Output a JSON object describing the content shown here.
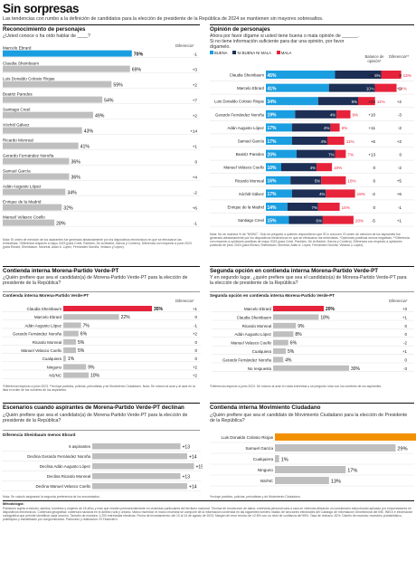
{
  "header": {
    "title": "Sin sorpresas",
    "subtitle": "Las tendencias con rumbo a la definición de candidatos para la elección de presidente de la República de 2024 se mantienen sin mayores sobresaltos."
  },
  "panel1": {
    "title": "Reconocimiento de personajes",
    "question": "¿Usted conoce o ha oído hablar de ____?",
    "diff_header": "Diferencia*",
    "note": "Nota: El orden de mención de los aspirantes fue generado aleatoriamente por los dispositivos electrónicos en que se efectuaron las entrevistas. *Diferencia respecto a mayo 2023 (para Creel, Paredes, De la Madrid, García y Cordero). Diferencia con respecto a junio 2023 (para Ebrard, Sheinbaum, Monreal, Adán A. López, Fernández Noroña, Velasco y López)."
  },
  "panel2": {
    "title": "Opinión de personajes",
    "question": "Ahora por favor dígame si usted tiene buena o mala opinión de ______. Si no tiene información suficiente para dar una opinión, por favor dígamelo.",
    "legend": [
      "BUENA",
      "NI BUENA NI MALA",
      "MALA"
    ],
    "balance_header": "Balance de opinión*",
    "diff_header": "Diferencia**",
    "note": "Nota: No se muestra % de \"NS/NC\". Sólo se preguntó a quienes respondieron que SÍ lo conocen. El orden de mención de los aspirantes fue generado aleatoriamente por los dispositivos electrónicos en que se efectuaron las entrevistas. *Opiniones positivas menos negativas. **Diferencia con respecto a opiniones positivas de mayo 2023 (para Creel, Paredes, De la Madrid, García y Cordero). Diferencia con respecto a opiniones positivas de junio 2023 (para Ebrard, Sheinbaum, Monreal, Adán A. López, Fernández Noroña, Velasco y López)."
  },
  "panel3": {
    "title": "Contienda interna Morena-Partido Verde-PT",
    "question": "¿Quién prefiere que sea el candidato(a) de Morena-Partido Verde-PT para la elección de presidente de la República?",
    "chart_title": "Contienda interna Morena-Partido Verde-PT",
    "diff_header": "Diferencia*",
    "note": "*Diferencia respecto a junio 2023. **Incluye partidos, policías, periodistas y de Movimiento Ciudadano. Nota: Se rotaron al azar y al azar en la lista el orden de los nombres de los aspirantes."
  },
  "panel4": {
    "title": "Segunda opción en contienda interna Morena-Partido Verde-PT",
    "question": "Y en segundo lugar, ¿quién prefiere que sea el candidato(a) de Morena-Partido Verde-PT para la elección de presidente de la República?",
    "chart_title": "Segunda opción en contienda interna Morena-Partido Verde-PT",
    "diff_header": "Diferencia*",
    "note": "*Diferencia respecto a junio 2023. Se rotaron al azar en cada entrevista y se preguntó rotar con los nombres de los aspirantes."
  },
  "panel5": {
    "title": "Escenarios cuando aspirantes de Morena-Partido Verde-PT declinan",
    "question": "¿Quién prefiere que sea el candidato(a) de Morena-Partido Verde-PT para la elección de presidente de la República?",
    "chart_title": "Diferencia Sheinbaum menos Ebrard",
    "note": "Nota: Se calculó asignando la segunda preferencia de los encuestados."
  },
  "panel6": {
    "title": "Contienda interna Movimiento Ciudadano",
    "question": "¿Quién prefiere que sea el candidato de Movimiento Ciudadano para la elección de Presidente de la República?",
    "note": "*Incluye partidos, policías, periodistas y de Movimiento Ciudadano."
  },
  "methodology": {
    "title": "Metodología:",
    "text": "Población sujeta a estudio: adultos, hombres y mujeres de 18 años y más que residen permanentemente en viviendas particulares del territorio nacional. Técnica de recolección de datos: entrevista personal cara a cara en vivienda utilizando un cuestionario estructurado aplicado por encuestadores en dispositivos electrónicos. Cobertura geográfica: cobertura nacional en el ámbito rural y urbano. Marco muestral: el marco muestral se compone de la información contenida en las siguientes fuentes: listado de secciones electorales del Catálogo de Información Geoelectoral del INE, INEGI e información cartográfica que permite identificar cada sección. Tamaño de muestra: 1,200 entrevistas efectivas. Fecha de levantamiento: del 10 al 14 de agosto de 2023. Margen de error teórico de ±2.8% con un nivel de confianza del 95%. Tasa de rechazo: 52%. Diseño de muestra: muestreo probabilístico, polietápico y estratificado por conglomerados. Patrocinio y realización: El Financiero."
  },
  "chart_data": [
    {
      "type": "bar",
      "title": "Reconocimiento de personajes",
      "categories": [
        "Marcelo Ebrard",
        "Claudia Sheinbaum",
        "Luis Donaldo Colosio Riojas",
        "Beatriz Paredes",
        "Santiago Creel",
        "Xóchitl Gálvez",
        "Ricardo Monreal",
        "Gerardo Fernández Noroña",
        "Samuel García",
        "Adán Augusto López",
        "Enrique de la Madrid",
        "Manuel Velasco Coello"
      ],
      "values": [
        70,
        69,
        59,
        54,
        49,
        43,
        41,
        36,
        36,
        34,
        32,
        28
      ],
      "diff_labels": [
        "-1",
        "+3",
        "+2",
        "+7",
        "+2",
        "+14",
        "+1",
        "0",
        "+4",
        "-2",
        "+6",
        "-1"
      ],
      "highlight": [
        true,
        false,
        false,
        false,
        false,
        false,
        false,
        false,
        false,
        false,
        false,
        false
      ],
      "xlim": [
        0,
        100
      ]
    },
    {
      "type": "bar",
      "stacked": true,
      "title": "Opinión de personajes",
      "categories": [
        "Claudia Sheinbaum",
        "Marcelo Ebrard",
        "Luis Donaldo Colosio Riojas",
        "Gerardo Fernández Noroña",
        "Adán Augusto López",
        "Samuel García",
        "Beatriz Paredes",
        "Manuel Velasco Coello",
        "Ricardo Monreal",
        "Xóchitl Gálvez",
        "Enrique de la Madrid",
        "Santiago Creel"
      ],
      "series": [
        {
          "name": "BUENA",
          "values": [
            45,
            41,
            34,
            19,
            17,
            17,
            20,
            10,
            16,
            17,
            14,
            15
          ],
          "color": "#1a9ee0"
        },
        {
          "name": "NI BUENA NI MALA",
          "values": [
            30,
            30,
            26,
            27,
            25,
            23,
            25,
            23,
            20,
            22,
            20,
            22
          ],
          "color": "#1e2f55"
        },
        {
          "name": "MALA",
          "values": [
            13,
            14,
            11,
            9,
            6,
            11,
            7,
            10,
            16,
            19,
            14,
            20
          ],
          "color": "#e6233a"
        }
      ],
      "bar_labels": [
        "45%",
        "41%",
        "34%",
        "19%",
        "17%",
        "17%",
        "20%",
        "10%",
        "16%",
        "17%",
        "14%",
        "15%"
      ],
      "mala_labels": [
        "13%",
        "14%",
        "11%",
        "9%",
        "6%",
        "11%",
        "7%",
        "10%",
        "16%",
        "19%",
        "14%",
        "20%"
      ],
      "small_labels": [
        "6%",
        "10%",
        "5%",
        "4%",
        "4%",
        "4%",
        "7%",
        "4%",
        "5%",
        "4%",
        "7%",
        "6%"
      ],
      "balance": [
        "+32",
        "+27",
        "+23",
        "+10",
        "+11",
        "+6",
        "+13",
        "0",
        "0",
        "-2",
        "0",
        "-5"
      ],
      "diff": [
        "0",
        "+2",
        "+2",
        "-3",
        "-2",
        "+2",
        "0",
        "-2",
        "+5",
        "+6",
        "-1",
        "+1"
      ]
    },
    {
      "type": "bar",
      "title": "Contienda interna Morena-Partido Verde-PT",
      "categories": [
        "Claudia Sheinbaum",
        "Marcelo Ebrard",
        "Adán Augusto López",
        "Gerardo Fernández Noroña",
        "Ricardo Monreal",
        "Manuel Velasco Coello",
        "Cualquiera",
        "Ninguno",
        "NS/NC"
      ],
      "values": [
        35,
        22,
        7,
        6,
        5,
        5,
        1,
        9,
        10
      ],
      "labels": [
        "35%",
        "22%",
        "7%",
        "6%",
        "5%",
        "5%",
        "1%",
        "9%",
        "10%"
      ],
      "diff_labels": [
        "+1",
        "0",
        "-1",
        "+2",
        "0",
        "0",
        "0",
        "+2",
        "+2"
      ],
      "highlight": [
        true,
        false,
        false,
        false,
        false,
        false,
        false,
        false,
        false
      ],
      "xlim": [
        0,
        40
      ]
    },
    {
      "type": "bar",
      "title": "Segunda opción en contienda interna Morena-Partido Verde-PT",
      "categories": [
        "Marcelo Ebrard",
        "Claudia Sheinbaum",
        "Ricardo Monreal",
        "Adán Augusto López",
        "Manuel Velasco Coello",
        "Cualquiera",
        "Gerardo Fernández Noroña",
        "No respuesta"
      ],
      "values": [
        20,
        18,
        9,
        8,
        6,
        5,
        4,
        30
      ],
      "labels": [
        "20%",
        "18%",
        "9%",
        "8%",
        "6%",
        "5%",
        "4%",
        "30%"
      ],
      "diff_labels": [
        "+3",
        "+1",
        "0",
        "0",
        "-2",
        "+1",
        "0",
        "-3"
      ],
      "highlight": [
        true,
        false,
        false,
        false,
        false,
        false,
        false,
        false
      ],
      "xlim": [
        0,
        40
      ]
    },
    {
      "type": "bar",
      "title": "Diferencia Sheinbaum menos Ebrard",
      "categories": [
        "6 aspirantes",
        "Declina Gerardo Fernández Noroña",
        "Declina Adán Augusto López",
        "Declina Ricardo Monreal",
        "Declina Manuel Velasco Coello"
      ],
      "values": [
        13,
        14,
        15,
        13,
        14
      ],
      "labels": [
        "+13",
        "+14",
        "+15",
        "+13",
        "+14"
      ],
      "xlim": [
        0,
        20
      ]
    },
    {
      "type": "bar",
      "title": "Contienda interna Movimiento Ciudadano",
      "categories": [
        "Luis Donaldo Colosio Riojas",
        "Samuel García",
        "Cualquiera",
        "Ninguno",
        "NS/NC"
      ],
      "values": [
        40,
        29,
        1,
        17,
        13
      ],
      "labels": [
        "40%",
        "29%",
        "1%",
        "17%",
        "13%"
      ],
      "highlight": [
        true,
        false,
        false,
        false,
        false
      ],
      "xlim": [
        0,
        45
      ]
    }
  ]
}
